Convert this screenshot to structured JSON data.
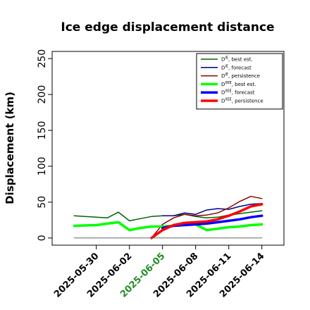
{
  "chart_data": {
    "type": "line",
    "title": "Ice edge displacement distance",
    "xlabel": "",
    "ylabel": "Displacement (km)",
    "ylim": [
      -10,
      260
    ],
    "yticks": [
      0,
      50,
      100,
      150,
      200,
      250
    ],
    "xlim": [
      "2025-05-26",
      "2025-06-16"
    ],
    "xticks": [
      "2025-05-30",
      "2025-06-02",
      "2025-06-05",
      "2025-06-08",
      "2025-06-11",
      "2025-06-14"
    ],
    "xtick_colors": [
      "#000000",
      "#000000",
      "#228B22",
      "#000000",
      "#000000",
      "#000000"
    ],
    "legend_position": "top-right",
    "series": [
      {
        "name": "D^IE, best est.",
        "legend_main": "D",
        "legend_sup": "IE",
        "legend_suffix": ", best est.",
        "color": "#006400",
        "width": 1.5,
        "x": [
          "2025-05-28",
          "2025-05-30",
          "2025-05-31",
          "2025-06-01",
          "2025-06-02",
          "2025-06-03",
          "2025-06-04",
          "2025-06-05",
          "2025-06-06",
          "2025-06-07",
          "2025-06-08",
          "2025-06-09",
          "2025-06-10",
          "2025-06-11",
          "2025-06-12",
          "2025-06-13",
          "2025-06-14"
        ],
        "y": [
          31,
          29,
          28,
          36,
          24,
          27,
          30,
          31,
          31,
          33,
          30,
          28,
          29,
          32,
          34,
          36,
          38
        ]
      },
      {
        "name": "D^IE, forecast",
        "legend_main": "D",
        "legend_sup": "IE",
        "legend_suffix": ", forecast",
        "color": "#00008B",
        "width": 1.5,
        "x": [
          "2025-06-05",
          "2025-06-06",
          "2025-06-07",
          "2025-06-08",
          "2025-06-09",
          "2025-06-10",
          "2025-06-11",
          "2025-06-12",
          "2025-06-13",
          "2025-06-14"
        ],
        "y": [
          31,
          31,
          35,
          33,
          39,
          41,
          40,
          44,
          47,
          48
        ]
      },
      {
        "name": "D^IE, persistence",
        "legend_main": "D",
        "legend_sup": "IE",
        "legend_suffix": ", persistence",
        "color": "#8B0000",
        "width": 1.5,
        "x": [
          "2025-06-04",
          "2025-06-05",
          "2025-06-06",
          "2025-06-07",
          "2025-06-08",
          "2025-06-09",
          "2025-06-10",
          "2025-06-11",
          "2025-06-12",
          "2025-06-13",
          "2025-06-14"
        ],
        "y": [
          0,
          19,
          28,
          33,
          31,
          32,
          35,
          42,
          51,
          58,
          55
        ]
      },
      {
        "name": "D^IIEE, best est.",
        "legend_main": "D",
        "legend_sup": "IIEE",
        "legend_suffix": ", best est.",
        "color": "#00FF00",
        "width": 3.5,
        "x": [
          "2025-05-28",
          "2025-05-30",
          "2025-05-31",
          "2025-06-01",
          "2025-06-02",
          "2025-06-03",
          "2025-06-04",
          "2025-06-05",
          "2025-06-06",
          "2025-06-07",
          "2025-06-08",
          "2025-06-09",
          "2025-06-10",
          "2025-06-11",
          "2025-06-12",
          "2025-06-13",
          "2025-06-14"
        ],
        "y": [
          17,
          18,
          20,
          22,
          11,
          14,
          16,
          16,
          17,
          19,
          19,
          11,
          13,
          15,
          16,
          18,
          19
        ]
      },
      {
        "name": "D^IIEE, forecast",
        "legend_main": "D",
        "legend_sup": "IIEE",
        "legend_suffix": ", forecast",
        "color": "#0000FF",
        "width": 3.5,
        "x": [
          "2025-06-05",
          "2025-06-06",
          "2025-06-07",
          "2025-06-08",
          "2025-06-09",
          "2025-06-10",
          "2025-06-11",
          "2025-06-12",
          "2025-06-13",
          "2025-06-14"
        ],
        "y": [
          14,
          17,
          18,
          19,
          20,
          22,
          24,
          26,
          29,
          31
        ]
      },
      {
        "name": "D^IIEE, persistence",
        "legend_main": "D",
        "legend_sup": "IIEE",
        "legend_suffix": ", persistence",
        "color": "#FF0000",
        "width": 3.5,
        "x": [
          "2025-06-04",
          "2025-06-05",
          "2025-06-06",
          "2025-06-07",
          "2025-06-08",
          "2025-06-09",
          "2025-06-10",
          "2025-06-11",
          "2025-06-12",
          "2025-06-13",
          "2025-06-14"
        ],
        "y": [
          0,
          11,
          18,
          21,
          22,
          23,
          26,
          31,
          37,
          44,
          47
        ]
      },
      {
        "name": "zero baseline",
        "legend": false,
        "color": "#666666",
        "width": 1,
        "x": [
          "2025-05-28",
          "2025-06-14"
        ],
        "y": [
          0,
          0
        ]
      }
    ]
  }
}
